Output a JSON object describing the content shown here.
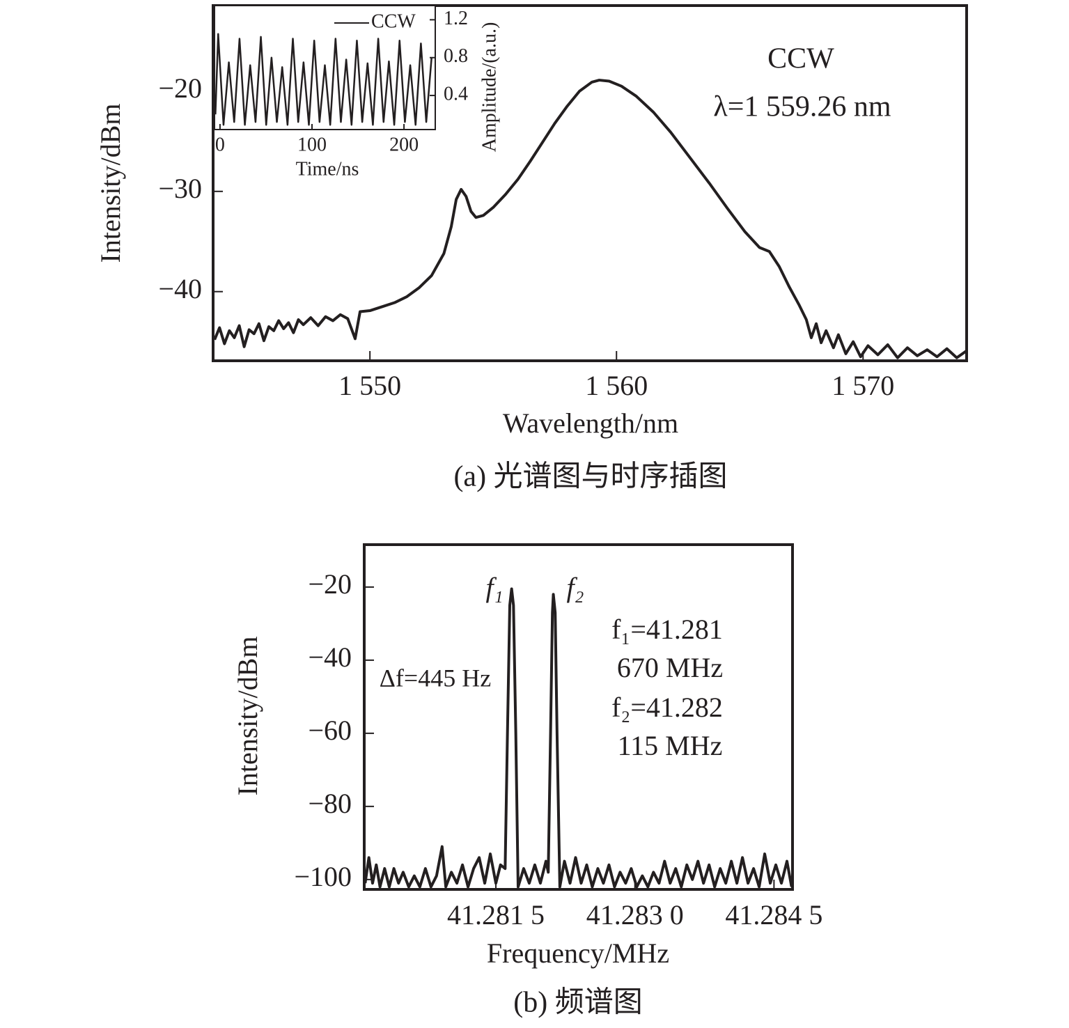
{
  "chart_data": [
    {
      "type": "line",
      "caption": "(a) 光谱图与时序插图",
      "x_label": "Wavelength/nm",
      "y_label": "Intensity/dBm",
      "annotations": [
        "CCW",
        "λ=1 559.26 nm"
      ],
      "xlim": [
        1543.64,
        1574.2
      ],
      "ylim": [
        -46.9,
        -11.46
      ],
      "xticks": [
        {
          "value": 1550,
          "label": "1 550"
        },
        {
          "value": 1560,
          "label": "1 560"
        },
        {
          "value": 1570,
          "label": "1 570"
        }
      ],
      "yticks": [
        {
          "value": -20,
          "label": "−20"
        },
        {
          "value": -30,
          "label": "−30"
        },
        {
          "value": -40,
          "label": "−40"
        }
      ],
      "x": [
        1543.7,
        1543.9,
        1544.1,
        1544.3,
        1544.5,
        1544.7,
        1544.9,
        1545.1,
        1545.3,
        1545.5,
        1545.7,
        1545.9,
        1546.1,
        1546.3,
        1546.5,
        1546.7,
        1546.9,
        1547.1,
        1547.3,
        1547.6,
        1547.9,
        1548.2,
        1548.5,
        1548.8,
        1549.1,
        1549.4,
        1549.6,
        1550.0,
        1550.5,
        1551.0,
        1551.5,
        1552.0,
        1552.5,
        1553.0,
        1553.3,
        1553.5,
        1553.7,
        1553.9,
        1554.1,
        1554.3,
        1554.6,
        1555.0,
        1555.5,
        1556.0,
        1556.5,
        1557.0,
        1557.5,
        1558.0,
        1558.5,
        1559.0,
        1559.3,
        1559.7,
        1560.2,
        1560.8,
        1561.5,
        1562.2,
        1563.0,
        1563.8,
        1564.5,
        1565.2,
        1565.8,
        1566.2,
        1566.6,
        1567.0,
        1567.4,
        1567.7,
        1567.9,
        1568.1,
        1568.3,
        1568.5,
        1568.8,
        1569.0,
        1569.3,
        1569.6,
        1569.9,
        1570.2,
        1570.6,
        1571.0,
        1571.4,
        1571.8,
        1572.2,
        1572.6,
        1573.0,
        1573.4,
        1573.8,
        1574.2
      ],
      "series": [
        {
          "color": "#231f20",
          "values": [
            -44.8,
            -43.6,
            -45.2,
            -43.9,
            -44.6,
            -43.4,
            -45.5,
            -43.8,
            -44.2,
            -43.2,
            -44.9,
            -43.5,
            -43.9,
            -42.9,
            -43.7,
            -43.1,
            -44.1,
            -42.8,
            -43.3,
            -42.6,
            -43.4,
            -42.5,
            -42.9,
            -42.3,
            -42.7,
            -44.7,
            -42.0,
            -41.9,
            -41.5,
            -41.1,
            -40.5,
            -39.6,
            -38.4,
            -36.2,
            -33.5,
            -30.8,
            -29.8,
            -30.5,
            -32.0,
            -32.6,
            -32.4,
            -31.6,
            -30.3,
            -28.8,
            -27.0,
            -25.1,
            -23.2,
            -21.5,
            -20.0,
            -19.1,
            -18.9,
            -19.0,
            -19.5,
            -20.5,
            -22.1,
            -24.1,
            -26.7,
            -29.3,
            -31.7,
            -34.0,
            -35.6,
            -36.0,
            -37.5,
            -39.5,
            -41.3,
            -42.8,
            -44.6,
            -43.2,
            -45.1,
            -43.9,
            -45.6,
            -44.3,
            -46.2,
            -45.0,
            -46.5,
            -45.4,
            -46.3,
            -45.3,
            -46.6,
            -45.6,
            -46.4,
            -45.8,
            -46.5,
            -45.7,
            -46.6,
            -45.9
          ]
        }
      ]
    },
    {
      "type": "line",
      "x_label": "Time/ns",
      "y_label": "Amplitude/(a.u.)",
      "xlim": [
        -6,
        234
      ],
      "ylim": [
        0.04,
        1.35
      ],
      "xticks": [
        0,
        100,
        200
      ],
      "yticks": [
        0.4,
        0.8,
        1.2
      ],
      "x": [
        -5,
        -2,
        3.8,
        9.6,
        15.4,
        21.2,
        27,
        32.8,
        38.6,
        44.4,
        50.2,
        56,
        61.8,
        67.6,
        73.4,
        79.2,
        85,
        90.8,
        96.6,
        102.4,
        108.2,
        114,
        119.8,
        125.6,
        131.4,
        137.2,
        143,
        148.8,
        154.6,
        160.4,
        166.2,
        172,
        177.8,
        183.6,
        189.4,
        195.2,
        201,
        206.8,
        212.6,
        218.4,
        224.2,
        230
      ],
      "series": [
        {
          "name": "CCW",
          "color": "#231f20",
          "values": [
            0.2,
            1.05,
            0.09,
            0.75,
            0.12,
            1.0,
            0.09,
            0.72,
            0.12,
            1.02,
            0.09,
            0.8,
            0.12,
            0.7,
            0.09,
            1.0,
            0.12,
            0.75,
            0.09,
            0.98,
            0.12,
            0.72,
            0.09,
            1.0,
            0.12,
            0.78,
            0.09,
            0.98,
            0.12,
            0.74,
            0.09,
            1.0,
            0.12,
            0.76,
            0.09,
            0.98,
            0.12,
            0.72,
            0.09,
            0.95,
            0.12,
            0.8
          ]
        }
      ]
    },
    {
      "type": "line",
      "caption": "(b) 频谱图",
      "x_label": "Frequency/MHz",
      "y_label": "Intensity/dBm",
      "annotations": [
        "f₁",
        "f₂",
        "f₁=41.281",
        "670 MHz",
        "f₂=41.282",
        "115 MHz",
        "Δf=445 Hz"
      ],
      "xlim": [
        41.28008,
        41.2847
      ],
      "ylim": [
        -102.7,
        -8.4
      ],
      "xticks": [
        {
          "value": 41.2815,
          "label": "41.281 5"
        },
        {
          "value": 41.283,
          "label": "41.283 0"
        },
        {
          "value": 41.2845,
          "label": "41.284 5"
        }
      ],
      "yticks": [
        {
          "value": -20,
          "label": "−20"
        },
        {
          "value": -40,
          "label": "−40"
        },
        {
          "value": -60,
          "label": "−60"
        },
        {
          "value": -80,
          "label": "−80"
        },
        {
          "value": -100,
          "label": "−100"
        }
      ],
      "x": [
        41.28009,
        41.28013,
        41.28017,
        41.28021,
        41.28025,
        41.2803,
        41.28035,
        41.2804,
        41.28045,
        41.2805,
        41.28056,
        41.28062,
        41.28068,
        41.28074,
        41.2808,
        41.28086,
        41.28092,
        41.28096,
        41.28102,
        41.28108,
        41.28114,
        41.2812,
        41.28126,
        41.28132,
        41.28138,
        41.28144,
        41.2815,
        41.28155,
        41.2816,
        41.281625,
        41.28165,
        41.28167,
        41.28169,
        41.281715,
        41.28174,
        41.2818,
        41.28186,
        41.28192,
        41.28198,
        41.28204,
        41.282065,
        41.28209,
        41.28211,
        41.28212,
        41.28214,
        41.28216,
        41.28219,
        41.28224,
        41.2823,
        41.28236,
        41.28242,
        41.28248,
        41.28254,
        41.2826,
        41.28266,
        41.28272,
        41.28278,
        41.28284,
        41.2829,
        41.28296,
        41.28302,
        41.28308,
        41.28314,
        41.2832,
        41.28326,
        41.28332,
        41.28338,
        41.28344,
        41.2835,
        41.28356,
        41.28362,
        41.28368,
        41.28374,
        41.2838,
        41.28386,
        41.28392,
        41.28398,
        41.28404,
        41.2841,
        41.28416,
        41.28422,
        41.28428,
        41.28434,
        41.2844,
        41.28446,
        41.28452,
        41.28458,
        41.28464,
        41.28469
      ],
      "series": [
        {
          "color": "#231f20",
          "values": [
            -101,
            -94,
            -101,
            -96,
            -102,
            -97,
            -102,
            -97,
            -101,
            -98,
            -102,
            -99,
            -102,
            -97,
            -102,
            -99,
            -91,
            -102,
            -98,
            -101,
            -96,
            -102,
            -97,
            -94,
            -101,
            -93,
            -101,
            -96,
            -97,
            -60,
            -25,
            -20.5,
            -25,
            -60,
            -102,
            -97,
            -101,
            -96,
            -101,
            -95,
            -98,
            -60,
            -27,
            -22,
            -27,
            -60,
            -102,
            -95,
            -101,
            -94,
            -101,
            -96,
            -102,
            -97,
            -101,
            -96,
            -102,
            -98,
            -101,
            -97,
            -102,
            -99,
            -102,
            -98,
            -101,
            -95,
            -101,
            -97,
            -102,
            -96,
            -100,
            -95,
            -101,
            -96,
            -102,
            -97,
            -101,
            -95,
            -101,
            -94,
            -101,
            -97,
            -102,
            -93,
            -101,
            -96,
            -101,
            -95,
            -102
          ]
        }
      ]
    }
  ]
}
